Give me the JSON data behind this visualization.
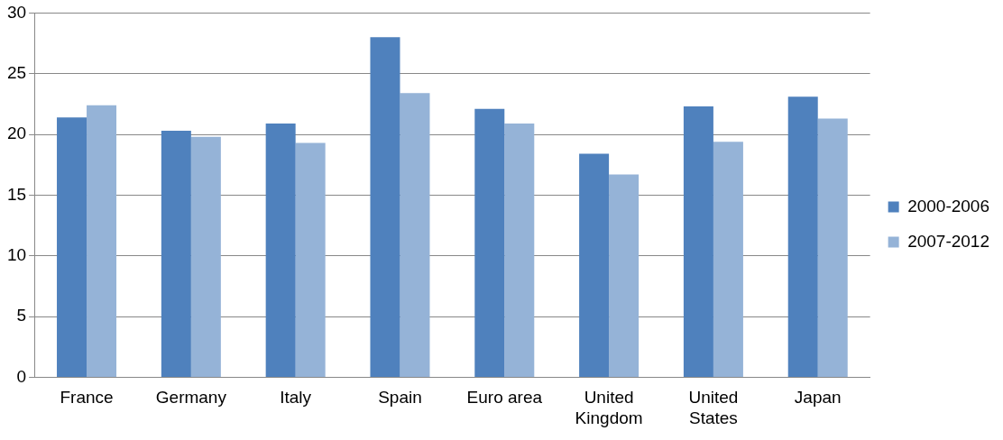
{
  "chart_data": {
    "type": "bar",
    "categories": [
      "France",
      "Germany",
      "Italy",
      "Spain",
      "Euro area",
      "United Kingdom",
      "United States",
      "Japan"
    ],
    "series": [
      {
        "name": "2000-2006",
        "color": "#4f81bd",
        "values": [
          21.4,
          20.3,
          20.9,
          28.0,
          22.1,
          18.4,
          22.3,
          23.1
        ]
      },
      {
        "name": "2007-2012",
        "color": "#95b3d7",
        "values": [
          22.4,
          19.8,
          19.3,
          23.4,
          20.9,
          16.7,
          19.4,
          21.3
        ]
      }
    ],
    "ylim": [
      0,
      30
    ],
    "yticks": [
      0,
      5,
      10,
      15,
      20,
      25,
      30
    ],
    "grid": "y",
    "legend": "right"
  }
}
